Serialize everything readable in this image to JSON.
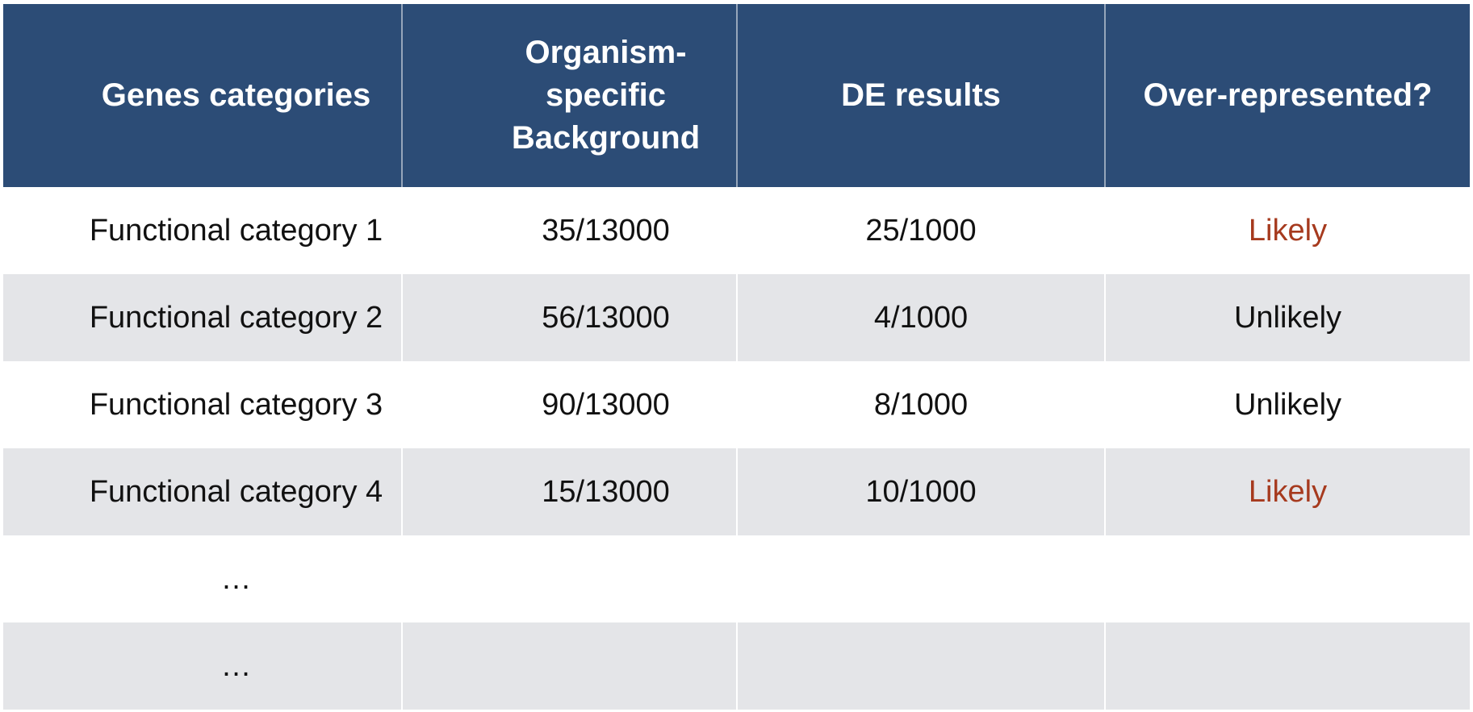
{
  "colors": {
    "header_bg": "#2c4c76",
    "header_text": "#ffffff",
    "alt_row_bg": "#e4e5e8",
    "body_text": "#111111",
    "likely_text": "#a63a1e"
  },
  "table": {
    "likely_label": "Likely",
    "headers": [
      "Genes categories",
      "Organism-\nspecific\nBackground",
      "DE results",
      "Over-represented?"
    ],
    "rows": [
      {
        "category": "Functional category 1",
        "background": "35/13000",
        "de": "25/1000",
        "verdict": "Likely"
      },
      {
        "category": "Functional category 2",
        "background": "56/13000",
        "de": "4/1000",
        "verdict": "Unlikely"
      },
      {
        "category": "Functional category 3",
        "background": "90/13000",
        "de": "8/1000",
        "verdict": "Unlikely"
      },
      {
        "category": "Functional category 4",
        "background": "15/13000",
        "de": "10/1000",
        "verdict": "Likely"
      },
      {
        "category": "…",
        "background": "",
        "de": "",
        "verdict": ""
      },
      {
        "category": "…",
        "background": "",
        "de": "",
        "verdict": ""
      }
    ]
  },
  "chart_data": {
    "type": "table",
    "columns": [
      "Genes categories",
      "Organism-specific Background",
      "DE results",
      "Over-represented?"
    ],
    "rows": [
      [
        "Functional category 1",
        "35/13000",
        "25/1000",
        "Likely"
      ],
      [
        "Functional category 2",
        "56/13000",
        "4/1000",
        "Unlikely"
      ],
      [
        "Functional category 3",
        "90/13000",
        "8/1000",
        "Unlikely"
      ],
      [
        "Functional category 4",
        "15/13000",
        "10/1000",
        "Likely"
      ],
      [
        "…",
        "",
        "",
        ""
      ],
      [
        "…",
        "",
        "",
        ""
      ]
    ],
    "title": "",
    "notes": "Likely verdicts rendered in brick red (#a63a1e); alternating rows shaded light gray"
  }
}
